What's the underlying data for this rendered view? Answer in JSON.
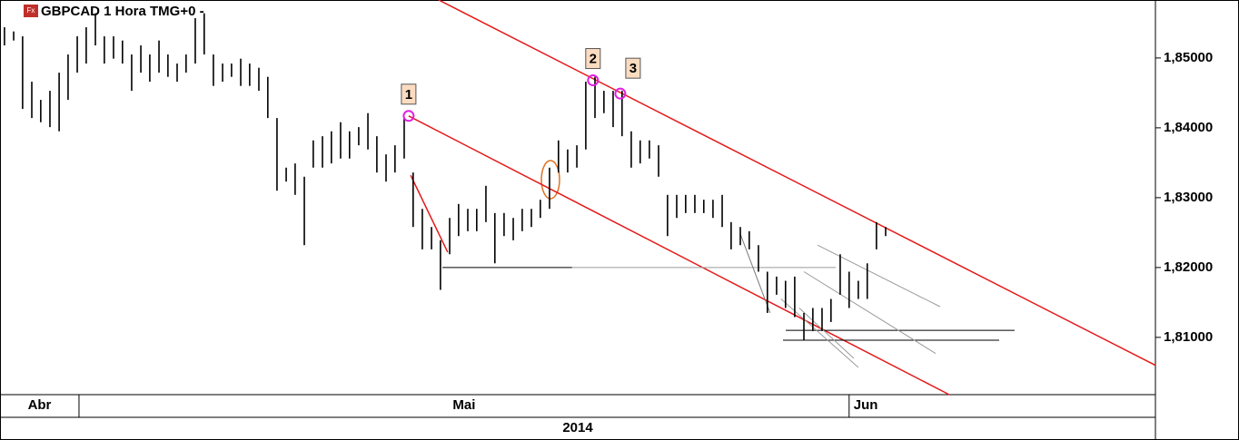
{
  "chart_data": {
    "type": "ohlc",
    "title": "GBPCAD 1 Hora TMG+0 -",
    "icon": "Fx",
    "xlim": [
      -3.18,
      43.33
    ],
    "ylim": [
      1.8018,
      1.8583
    ],
    "yticks": [
      {
        "value": 1.81,
        "label": "1,81000"
      },
      {
        "value": 1.82,
        "label": "1,82000"
      },
      {
        "value": 1.83,
        "label": "1,83000"
      },
      {
        "value": 1.84,
        "label": "1,84000"
      },
      {
        "value": 1.85,
        "label": "1,85000"
      }
    ],
    "periods": [
      {
        "label": "Abr",
        "start": -3.18,
        "end": 0
      },
      {
        "label": "Mai",
        "start": 0,
        "end": 31
      },
      {
        "label": "Jun",
        "start": 31,
        "end": 43.33
      }
    ],
    "year": "2014",
    "bar_color": "#000000",
    "x": [
      -3.0,
      -2.63,
      -2.27,
      -1.9,
      -1.54,
      -1.17,
      -0.8,
      -0.44,
      -0.07,
      0.29,
      0.66,
      1.02,
      1.39,
      1.75,
      2.12,
      2.49,
      2.85,
      3.22,
      3.58,
      3.95,
      4.31,
      4.68,
      5.04,
      5.41,
      5.78,
      6.14,
      6.51,
      6.87,
      7.24,
      7.6,
      7.97,
      8.34,
      8.7,
      9.07,
      9.43,
      9.8,
      10.16,
      10.53,
      10.89,
      11.26,
      11.63,
      11.99,
      12.36,
      12.72,
      13.09,
      13.45,
      13.82,
      14.19,
      14.55,
      14.92,
      15.28,
      15.65,
      16.01,
      16.38,
      16.74,
      17.11,
      17.48,
      17.84,
      18.21,
      18.57,
      18.94,
      19.3,
      19.67,
      20.04,
      20.4,
      20.77,
      21.13,
      21.5,
      21.86,
      22.23,
      22.59,
      22.96,
      23.33,
      23.69,
      24.06,
      24.42,
      24.79,
      25.15,
      25.52,
      25.89,
      26.25,
      26.62,
      26.98,
      27.35,
      27.71,
      28.08,
      28.44,
      28.81,
      29.18,
      29.54,
      29.91,
      30.27,
      30.64,
      31.0,
      31.37,
      31.73,
      32.1,
      32.47
    ],
    "high": [
      1.8544,
      1.8538,
      1.8531,
      1.8466,
      1.844,
      1.8453,
      1.8479,
      1.8505,
      1.8531,
      1.8544,
      1.8564,
      1.8531,
      1.8531,
      1.8525,
      1.8505,
      1.8518,
      1.8505,
      1.8525,
      1.8505,
      1.8492,
      1.8505,
      1.8557,
      1.8564,
      1.8505,
      1.8492,
      1.8492,
      1.8499,
      1.8492,
      1.8486,
      1.8473,
      1.8414,
      1.8343,
      1.8349,
      1.833,
      1.8382,
      1.8388,
      1.8395,
      1.8408,
      1.8395,
      1.8401,
      1.8421,
      1.8388,
      1.8362,
      1.8375,
      1.8414,
      1.8336,
      1.8284,
      1.8258,
      1.8239,
      1.8271,
      1.8291,
      1.8284,
      1.8284,
      1.8317,
      1.8278,
      1.8278,
      1.8271,
      1.8284,
      1.8284,
      1.8297,
      1.8343,
      1.8382,
      1.8369,
      1.8375,
      1.8466,
      1.8473,
      1.8453,
      1.8453,
      1.8453,
      1.8395,
      1.8382,
      1.8382,
      1.8375,
      1.8304,
      1.8304,
      1.8304,
      1.8304,
      1.8297,
      1.8297,
      1.8304,
      1.8265,
      1.8258,
      1.8252,
      1.8232,
      1.8194,
      1.8187,
      1.8181,
      1.8187,
      1.8135,
      1.8142,
      1.8142,
      1.8155,
      1.8219,
      1.8194,
      1.8181,
      1.8206,
      1.8265,
      1.8258
    ],
    "low": [
      1.8518,
      1.8525,
      1.8427,
      1.8414,
      1.8408,
      1.8401,
      1.8395,
      1.844,
      1.8479,
      1.8492,
      1.8518,
      1.8492,
      1.8499,
      1.8492,
      1.8453,
      1.8479,
      1.8466,
      1.8479,
      1.8473,
      1.8466,
      1.8479,
      1.8492,
      1.8505,
      1.846,
      1.8466,
      1.8473,
      1.846,
      1.846,
      1.8453,
      1.8414,
      1.831,
      1.8323,
      1.8304,
      1.8232,
      1.8343,
      1.8343,
      1.8349,
      1.8356,
      1.8356,
      1.8375,
      1.8369,
      1.8336,
      1.8323,
      1.8336,
      1.8356,
      1.8258,
      1.8226,
      1.8226,
      1.8168,
      1.8219,
      1.8245,
      1.8252,
      1.8252,
      1.8265,
      1.8206,
      1.8245,
      1.8239,
      1.8252,
      1.8258,
      1.8271,
      1.8284,
      1.8336,
      1.8336,
      1.8343,
      1.8369,
      1.8414,
      1.8421,
      1.8401,
      1.8388,
      1.8343,
      1.8349,
      1.8356,
      1.833,
      1.8245,
      1.8271,
      1.8278,
      1.8278,
      1.8278,
      1.8271,
      1.8258,
      1.8226,
      1.8232,
      1.8226,
      1.8194,
      1.8135,
      1.8161,
      1.8142,
      1.8129,
      1.8096,
      1.8109,
      1.8109,
      1.8122,
      1.8161,
      1.8142,
      1.8155,
      1.8155,
      1.8226,
      1.8245
    ],
    "lines": [
      {
        "x": [
          13.27,
          35.03
        ],
        "y": [
          1.8417,
          1.8018
        ],
        "color": "#e41a1a"
      },
      {
        "x": [
          14.48,
          43.33
        ],
        "y": [
          1.8583,
          1.806
        ],
        "color": "#e41a1a"
      },
      {
        "x": [
          13.35,
          14.84
        ],
        "y": [
          1.8332,
          1.8222
        ],
        "color": "#e41a1a"
      },
      {
        "x": [
          14.63,
          19.85
        ],
        "y": [
          1.82,
          1.82
        ],
        "color": "#000000"
      },
      {
        "x": [
          19.85,
          30.46
        ],
        "y": [
          1.82,
          1.82
        ],
        "color": "#9a9a9a"
      },
      {
        "x": [
          28.45,
          37.66
        ],
        "y": [
          1.811,
          1.811
        ],
        "color": "#000000"
      },
      {
        "x": [
          28.34,
          37.04
        ],
        "y": [
          1.8096,
          1.8096
        ],
        "color": "#000000"
      },
      {
        "x": [
          26.62,
          27.82
        ],
        "y": [
          1.8248,
          1.8135
        ],
        "color": "#7a7a7a"
      },
      {
        "x": [
          29.73,
          34.66
        ],
        "y": [
          1.8232,
          1.8144
        ],
        "color": "#9a9a9a"
      },
      {
        "x": [
          29.18,
          34.48
        ],
        "y": [
          1.8194,
          1.8077
        ],
        "color": "#9a9a9a"
      },
      {
        "x": [
          28.26,
          31.37
        ],
        "y": [
          1.8155,
          1.8057
        ],
        "color": "#9a9a9a"
      },
      {
        "x": [
          28.99,
          31.19
        ],
        "y": [
          1.8142,
          1.807
        ],
        "color": "#9a9a9a"
      }
    ],
    "annotations": [
      {
        "label": "1",
        "x": 13.27,
        "y": 1.8417
      },
      {
        "label": "2",
        "x": 20.69,
        "y": 1.8468
      },
      {
        "label": "3",
        "x": 21.79,
        "y": 1.8449
      }
    ]
  }
}
